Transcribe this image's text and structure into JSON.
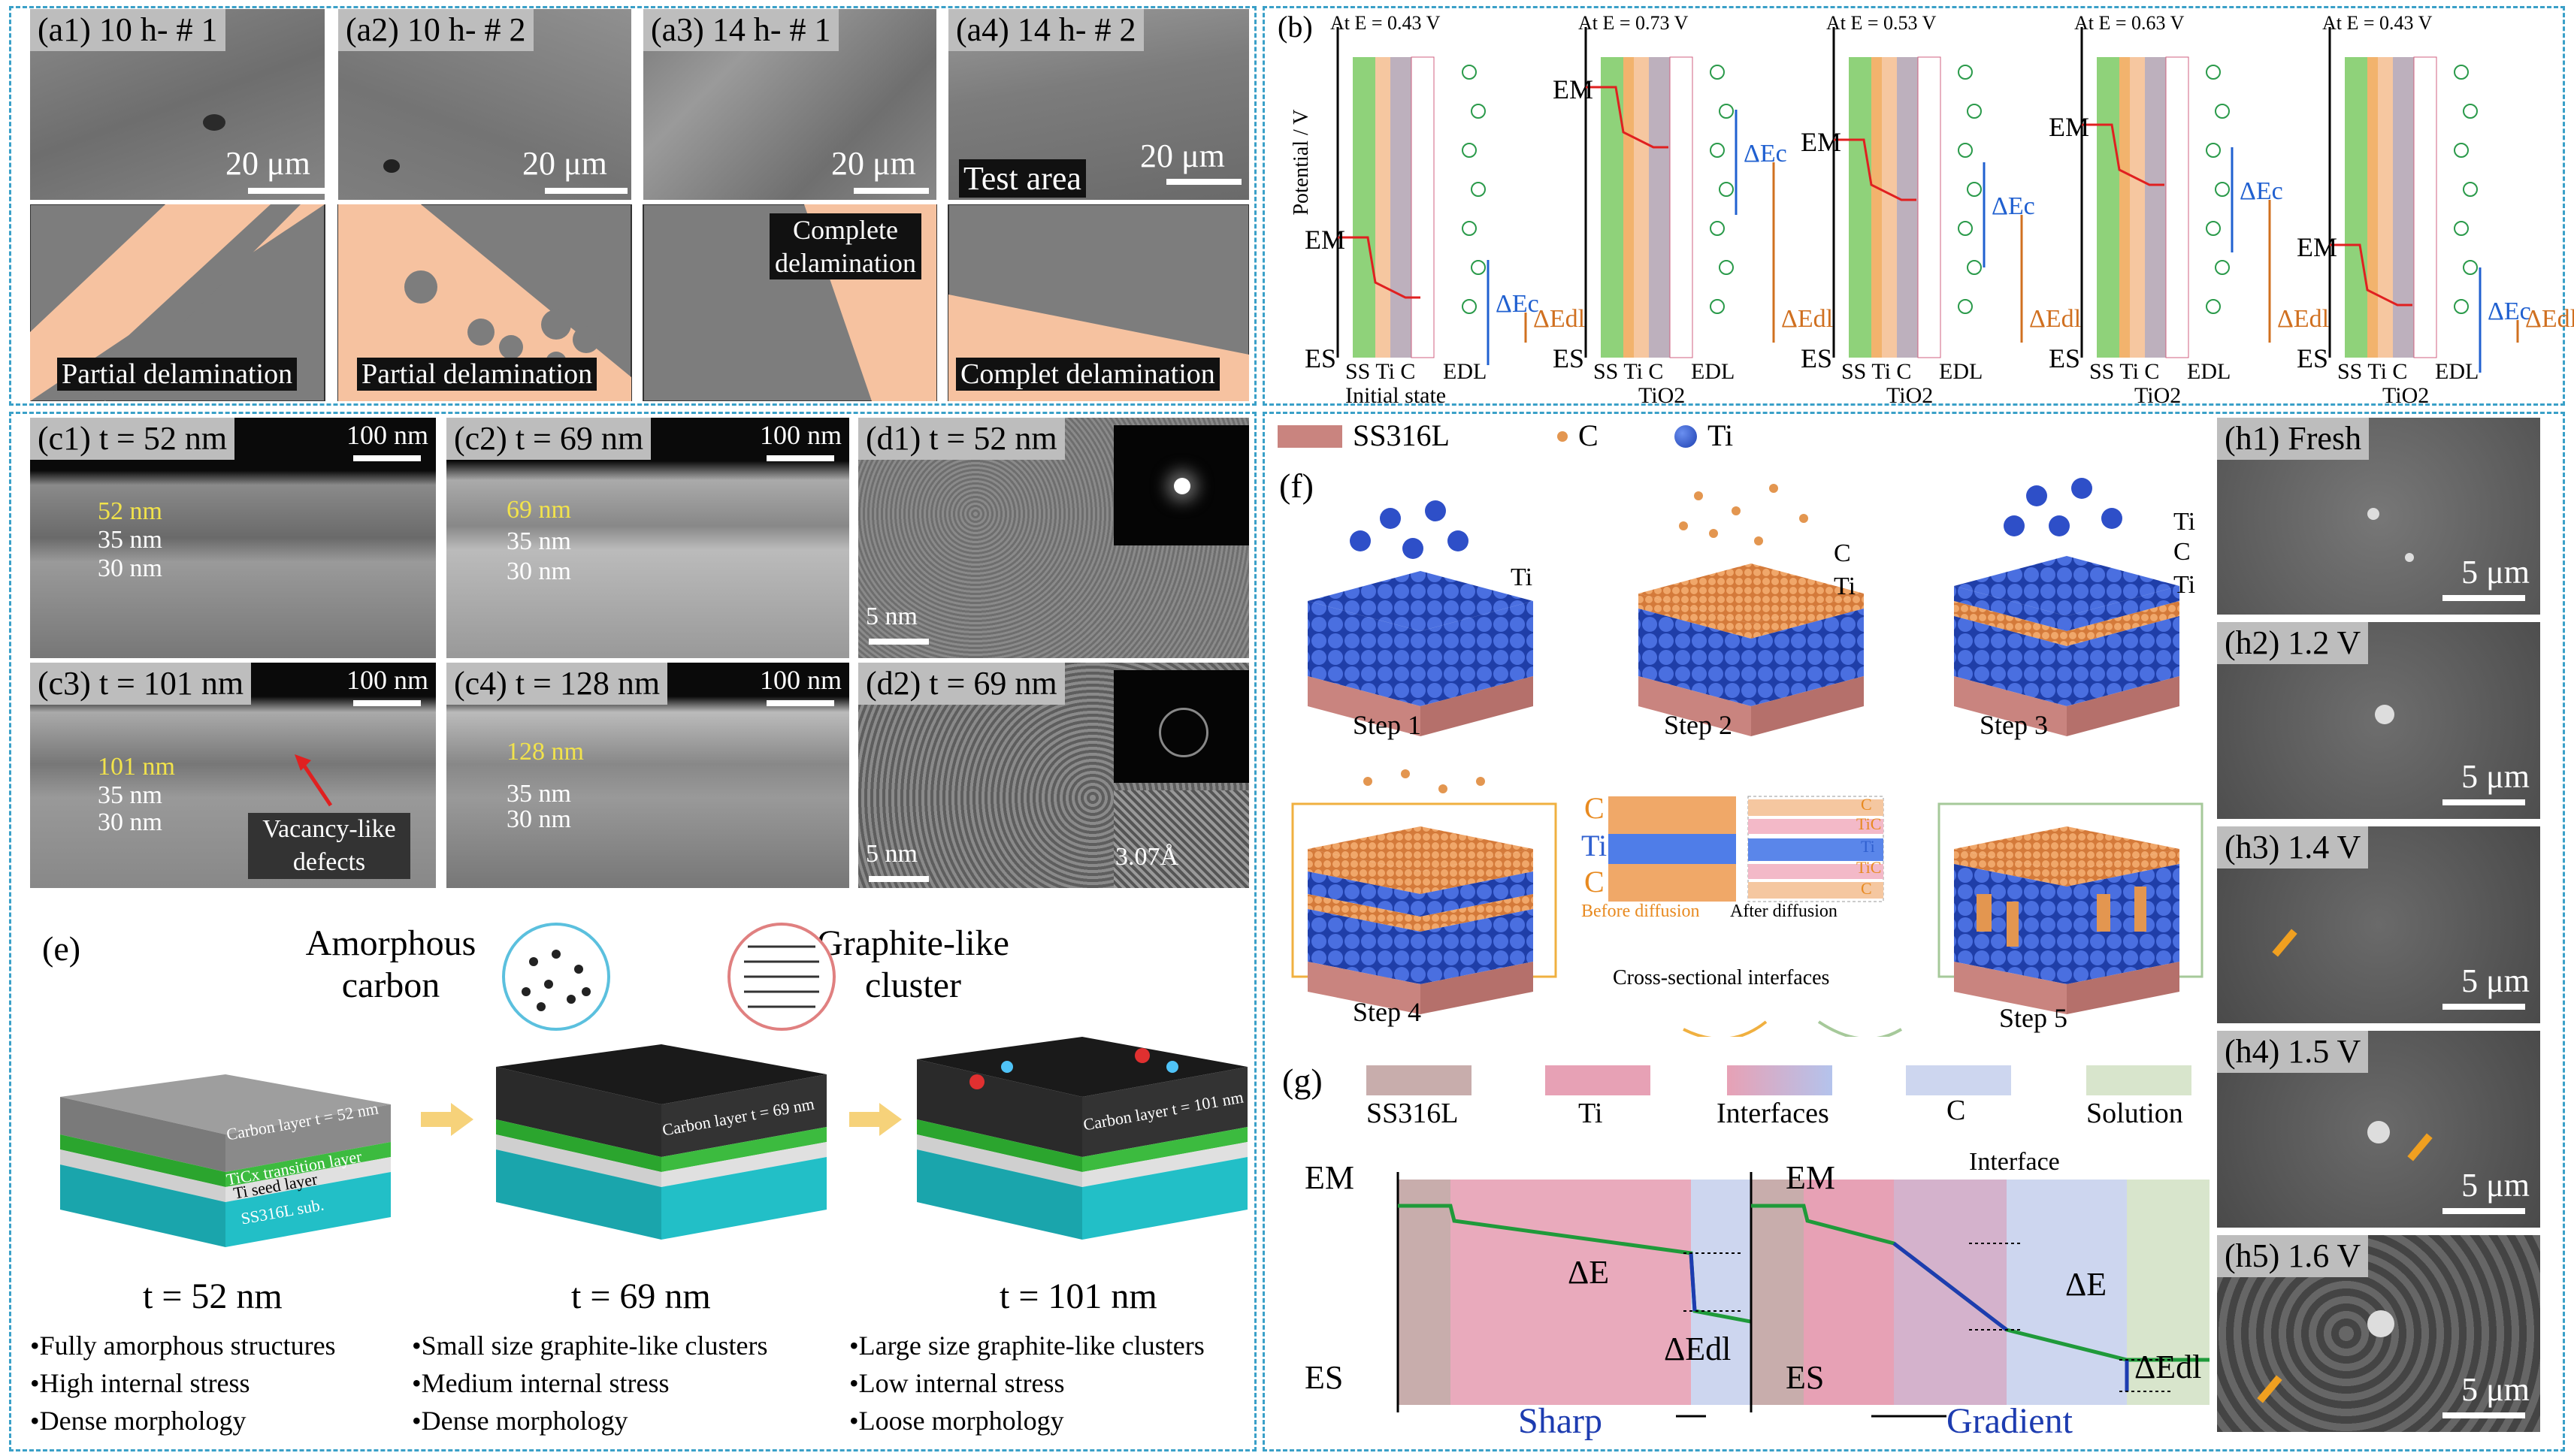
{
  "panel_a": {
    "tiles": [
      {
        "label": "(a1) 10 h- # 1",
        "scale": "20 μm",
        "delam": "Partial delamination"
      },
      {
        "label": "(a2) 10 h- # 2",
        "scale": "20 μm",
        "delam": "Partial delamination"
      },
      {
        "label": "(a3) 14 h- # 1",
        "scale": "20 μm",
        "delam": "Complete delamination"
      },
      {
        "label": "(a4) 14 h- # 2",
        "scale": "20 μm",
        "extra": "Test area",
        "delam": "Complet delamination"
      }
    ]
  },
  "panel_b": {
    "label": "(b)",
    "y_axis": "Potential / V",
    "plots": [
      {
        "title": "At E = 0.43 V",
        "layers": "SS Ti C",
        "edl": "EDL",
        "sub": "Initial state"
      },
      {
        "title": "At E = 0.73 V",
        "layers": "SS Ti C",
        "edl": "EDL",
        "sub": "TiO2"
      },
      {
        "title": "At E = 0.53 V",
        "layers": "SS Ti C",
        "edl": "EDL",
        "sub": "TiO2"
      },
      {
        "title": "At E = 0.63 V",
        "layers": "SS Ti C",
        "edl": "EDL",
        "sub": "TiO2"
      },
      {
        "title": "At E = 0.43 V",
        "layers": "SS Ti C",
        "edl": "EDL",
        "sub": "TiO2"
      }
    ],
    "em": "EM",
    "es": "ES",
    "dec": "ΔEc",
    "dedl": "ΔEdl"
  },
  "panel_c": {
    "tiles": [
      {
        "label": "(c1) t = 52 nm",
        "scale": "100 nm",
        "t1": "52 nm",
        "t2": "35 nm",
        "t3": "30 nm"
      },
      {
        "label": "(c2) t = 69 nm",
        "scale": "100 nm",
        "t1": "69 nm",
        "t2": "35 nm",
        "t3": "30 nm"
      },
      {
        "label": "(c3) t = 101 nm",
        "scale": "100 nm",
        "t1": "101 nm",
        "t2": "35 nm",
        "t3": "30 nm",
        "note": "Vacancy-like defects"
      },
      {
        "label": "(c4) t = 128 nm",
        "scale": "100 nm",
        "t1": "128 nm",
        "t2": "35 nm",
        "t3": "30 nm"
      }
    ]
  },
  "panel_d": {
    "tiles": [
      {
        "label": "(d1) t = 52 nm",
        "scale": "5 nm"
      },
      {
        "label": "(d2) t = 69 nm",
        "scale": "5 nm",
        "spacing": "3.07Å"
      }
    ]
  },
  "panel_e": {
    "label": "(e)",
    "amorphous": "Amorphous carbon",
    "graphite": "Graphite-like cluster",
    "stack_labels": [
      "Carbon layer t = 52 nm",
      "Carbon layer t = 69 nm",
      "Carbon layer t = 101 nm",
      "TiCx transition layer",
      "Ti seed layer",
      "SS316L sub."
    ],
    "columns": [
      {
        "t": "t = 52 nm",
        "bullets": [
          "•Fully amorphous structures",
          "•High internal stress",
          "•Dense morphology"
        ]
      },
      {
        "t": "t = 69 nm",
        "bullets": [
          "•Small size graphite-like clusters",
          "•Medium internal stress",
          "•Dense morphology"
        ]
      },
      {
        "t": "t = 101 nm",
        "bullets": [
          "•Large size graphite-like clusters",
          "•Low internal stress",
          "•Loose morphology"
        ]
      }
    ]
  },
  "panel_f": {
    "label": "(f)",
    "legend": [
      "SS316L",
      "C",
      "Ti"
    ],
    "steps": [
      "Step 1",
      "Step 2",
      "Step 3",
      "Step 4",
      "Step 5"
    ],
    "atom_labels": [
      "Ti",
      "C",
      "Ti",
      "Ti",
      "C",
      "Ti"
    ],
    "before": "Before diffusion",
    "after": "After diffusion",
    "before_layers": [
      "C",
      "Ti",
      "C"
    ],
    "after_layers": [
      "C",
      "TiC",
      "Ti",
      "TiC",
      "C"
    ],
    "cross": "Cross-sectional interfaces"
  },
  "panel_g": {
    "label": "(g)",
    "legend": [
      "SS316L",
      "Ti",
      "Interfaces",
      "C",
      "Solution"
    ],
    "interface": "Interface",
    "sharp": "Sharp",
    "gradient": "Gradient",
    "em": "EM",
    "es": "ES",
    "de": "ΔE",
    "dedl": "ΔEdl"
  },
  "panel_h": {
    "tiles": [
      {
        "label": "(h1) Fresh",
        "scale": "5 μm"
      },
      {
        "label": "(h2) 1.2 V",
        "scale": "5 μm"
      },
      {
        "label": "(h3) 1.4 V",
        "scale": "5 μm"
      },
      {
        "label": "(h4) 1.5 V",
        "scale": "5 μm"
      },
      {
        "label": "(h5) 1.6 V",
        "scale": "5 μm"
      }
    ]
  },
  "colors": {
    "frame": "#3aa0c8",
    "ss": "#c9847f",
    "ti": "#e8a0b4",
    "c": "#c9d4ef",
    "solution": "#dbe8cf",
    "delam": "#f6c2a0"
  }
}
